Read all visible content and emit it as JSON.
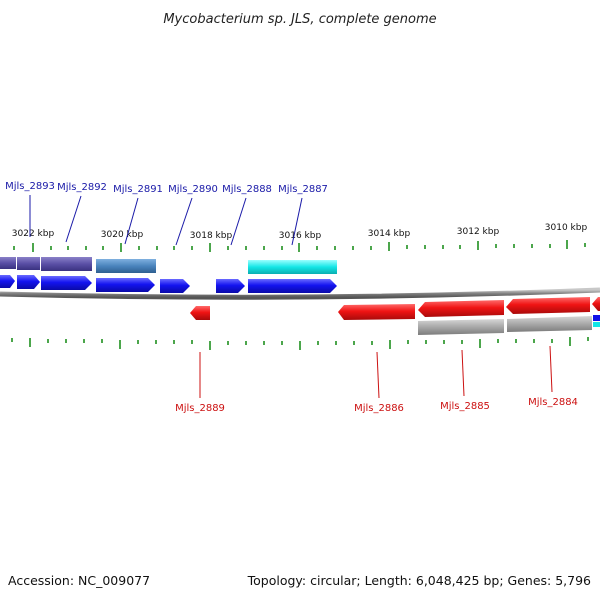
{
  "title": "Mycobacterium sp. JLS, complete genome",
  "footer": {
    "accession": "Accession: NC_009077",
    "summary": "Topology: circular; Length: 6,048,425 bp; Genes: 5,796"
  },
  "scale_labels": [
    "3022 kbp",
    "3020 kbp",
    "3018 kbp",
    "3016 kbp",
    "3014 kbp",
    "3012 kbp",
    "3010 kbp"
  ],
  "gene_labels_forward": [
    "Mjls_2893",
    "Mjls_2892",
    "Mjls_2891",
    "Mjls_2890",
    "Mjls_2888",
    "Mjls_2887"
  ],
  "gene_labels_reverse": [
    "Mjls_2889",
    "Mjls_2886",
    "Mjls_2885",
    "Mjls_2884"
  ],
  "colors": {
    "forward_gene": "#1010e8",
    "reverse_gene": "#e81010",
    "backbone": "#808080",
    "tick": "#118811",
    "cog_purple": "#5a4fa6",
    "cog_steel": "#4a84bd",
    "cog_cyan": "#14e6e6",
    "cog_gray": "#a0a0a0"
  }
}
